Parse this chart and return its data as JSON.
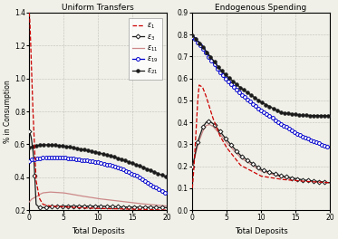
{
  "title_left": "Uniform Transfers",
  "title_right": "Endogenous Spending",
  "xlabel": "Total Deposits",
  "ylabel": "% in Consumption",
  "legend_labels": [
    "$\\varepsilon_{1}$",
    "$\\varepsilon_{3}$",
    "$\\varepsilon_{11}$",
    "$\\varepsilon_{19}$",
    "$\\varepsilon_{21}$"
  ],
  "xlim": [
    0,
    20
  ],
  "ylim_left": [
    0.2,
    1.4
  ],
  "ylim_right": [
    0.0,
    0.9
  ],
  "yticks_left": [
    0.2,
    0.4,
    0.6,
    0.8,
    1.0,
    1.2,
    1.4
  ],
  "yticks_right": [
    0.0,
    0.1,
    0.2,
    0.3,
    0.4,
    0.5,
    0.6,
    0.7,
    0.8,
    0.9
  ],
  "xticks": [
    0,
    5,
    10,
    15,
    20
  ],
  "colors": {
    "eps1": "#cc0000",
    "eps3": "#1a1a1a",
    "eps11": "#cc8888",
    "eps19": "#0000cc",
    "eps21": "#1a1a1a"
  },
  "background": "#f0f0e8"
}
